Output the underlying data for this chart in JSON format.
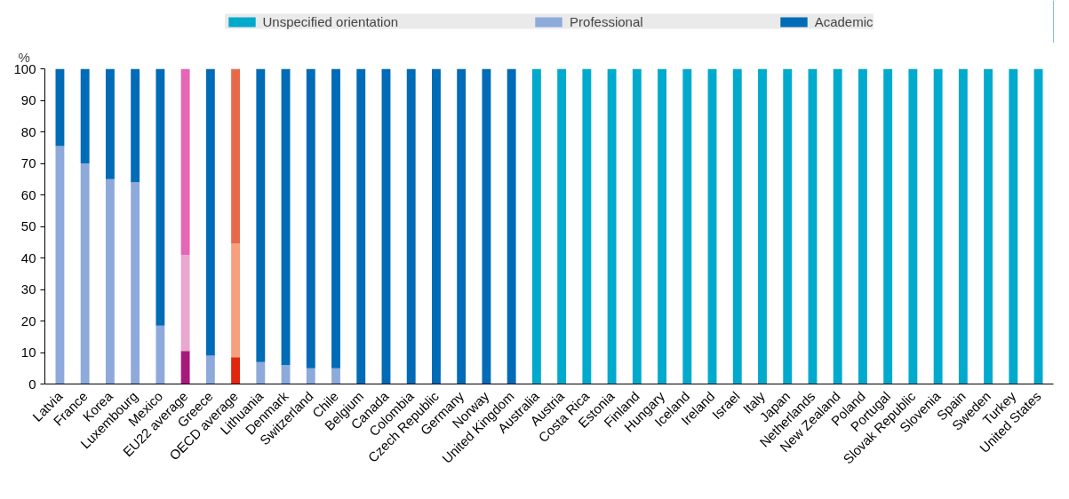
{
  "chart_data": {
    "type": "bar",
    "stacked": true,
    "ylabel": "%",
    "ylim": [
      0,
      100
    ],
    "yticks": [
      0,
      10,
      20,
      30,
      40,
      50,
      60,
      70,
      80,
      90,
      100
    ],
    "grid": false,
    "legend": "top",
    "categories": [
      "Latvia",
      "France",
      "Korea",
      "Luxembourg",
      "Mexico",
      "EU22 average",
      "Greece",
      "OECD average",
      "Lithuania",
      "Denmark",
      "Switzerland",
      "Chile",
      "Belgium",
      "Canada",
      "Colombia",
      "Czech Republic",
      "Germany",
      "Norway",
      "United Kingdom",
      "Australia",
      "Austria",
      "Costa Rica",
      "Estonia",
      "Finland",
      "Hungary",
      "Iceland",
      "Ireland",
      "Israel",
      "Italy",
      "Japan",
      "Netherlands",
      "New Zealand",
      "Poland",
      "Portugal",
      "Slovak Republic",
      "Slovenia",
      "Spain",
      "Sweden",
      "Turkey",
      "United States"
    ],
    "series": [
      {
        "name": "Unspecified orientation",
        "values": [
          0,
          0,
          0,
          0,
          0,
          10.5,
          0,
          8.5,
          0,
          0,
          0,
          0,
          0,
          0,
          0,
          0,
          0,
          0,
          0,
          100,
          100,
          100,
          100,
          100,
          100,
          100,
          100,
          100,
          100,
          100,
          100,
          100,
          100,
          100,
          100,
          100,
          100,
          100,
          100,
          100
        ],
        "colors": [
          "#00aacc",
          "#00aacc",
          "#00aacc",
          "#00aacc",
          "#00aacc",
          "#a7197a",
          "#00aacc",
          "#e0260f",
          "#00aacc",
          "#00aacc",
          "#00aacc",
          "#00aacc",
          "#00aacc",
          "#00aacc",
          "#00aacc",
          "#00aacc",
          "#00aacc",
          "#00aacc",
          "#00aacc",
          "#00aacc",
          "#00aacc",
          "#00aacc",
          "#00aacc",
          "#00aacc",
          "#00aacc",
          "#00aacc",
          "#00aacc",
          "#00aacc",
          "#00aacc",
          "#00aacc",
          "#00aacc",
          "#00aacc",
          "#00aacc",
          "#00aacc",
          "#00aacc",
          "#00aacc",
          "#00aacc",
          "#00aacc",
          "#00aacc",
          "#00aacc"
        ]
      },
      {
        "name": "Professional",
        "values": [
          75.5,
          70,
          65,
          64,
          18.5,
          30.5,
          9,
          36,
          7,
          6,
          5,
          5,
          0,
          0,
          0,
          0,
          0,
          0,
          0,
          0,
          0,
          0,
          0,
          0,
          0,
          0,
          0,
          0,
          0,
          0,
          0,
          0,
          0,
          0,
          0,
          0,
          0,
          0,
          0,
          0
        ],
        "colors": [
          "#8eaadb",
          "#8eaadb",
          "#8eaadb",
          "#8eaadb",
          "#8eaadb",
          "#eaa7cf",
          "#8eaadb",
          "#f7a07e",
          "#8eaadb",
          "#8eaadb",
          "#8eaadb",
          "#8eaadb",
          "#8eaadb",
          "#8eaadb",
          "#8eaadb",
          "#8eaadb",
          "#8eaadb",
          "#8eaadb",
          "#8eaadb",
          "#8eaadb",
          "#8eaadb",
          "#8eaadb",
          "#8eaadb",
          "#8eaadb",
          "#8eaadb",
          "#8eaadb",
          "#8eaadb",
          "#8eaadb",
          "#8eaadb",
          "#8eaadb",
          "#8eaadb",
          "#8eaadb",
          "#8eaadb",
          "#8eaadb",
          "#8eaadb",
          "#8eaadb",
          "#8eaadb",
          "#8eaadb",
          "#8eaadb",
          "#8eaadb"
        ]
      },
      {
        "name": "Academic",
        "values": [
          24.5,
          30,
          35,
          36,
          81.5,
          59,
          91,
          55.5,
          93,
          94,
          95,
          95,
          100,
          100,
          100,
          100,
          100,
          100,
          100,
          0,
          0,
          0,
          0,
          0,
          0,
          0,
          0,
          0,
          0,
          0,
          0,
          0,
          0,
          0,
          0,
          0,
          0,
          0,
          0,
          0
        ],
        "colors": [
          "#006bb6",
          "#006bb6",
          "#006bb6",
          "#006bb6",
          "#006bb6",
          "#e665b5",
          "#006bb6",
          "#e8694a",
          "#006bb6",
          "#006bb6",
          "#006bb6",
          "#006bb6",
          "#006bb6",
          "#006bb6",
          "#006bb6",
          "#006bb6",
          "#006bb6",
          "#006bb6",
          "#006bb6",
          "#006bb6",
          "#006bb6",
          "#006bb6",
          "#006bb6",
          "#006bb6",
          "#006bb6",
          "#006bb6",
          "#006bb6",
          "#006bb6",
          "#006bb6",
          "#006bb6",
          "#006bb6",
          "#006bb6",
          "#006bb6",
          "#006bb6",
          "#006bb6",
          "#006bb6",
          "#006bb6",
          "#006bb6",
          "#006bb6",
          "#006bb6"
        ]
      }
    ]
  }
}
